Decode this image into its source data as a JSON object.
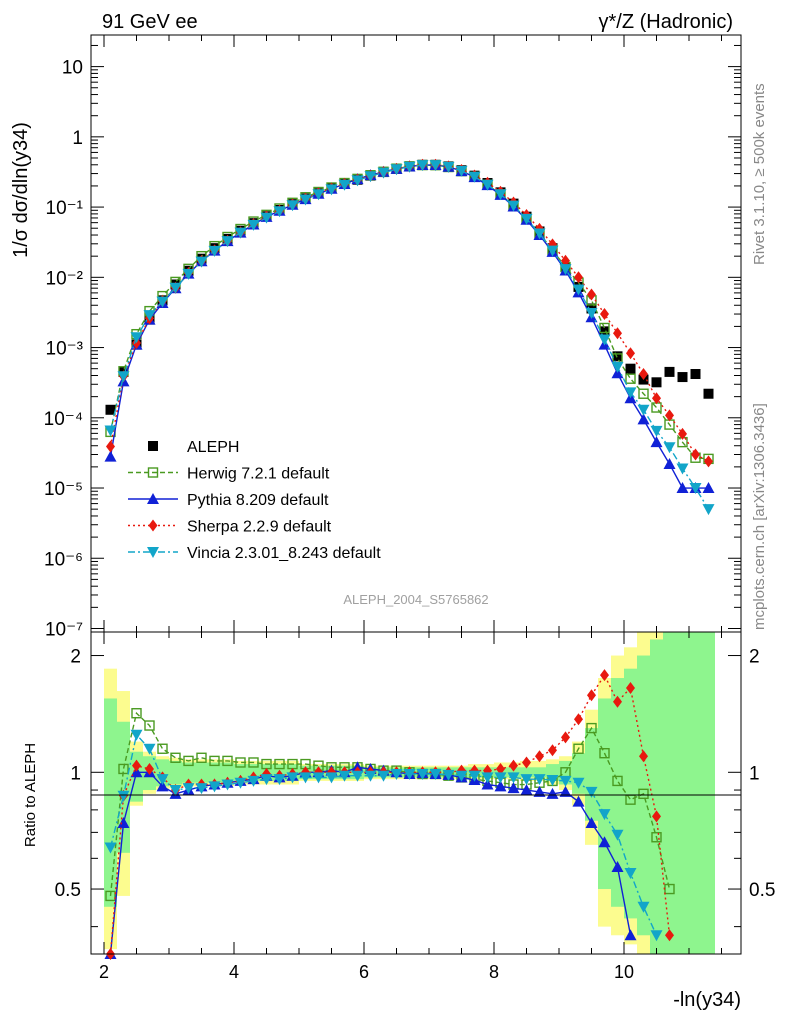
{
  "header": {
    "left_title": "91 GeV ee",
    "right_title": "γ*/Z (Hadronic)"
  },
  "side_labels": {
    "rivet": "Rivet 3.1.10, ≥ 500k events",
    "mcplots": "mcplots.cern.ch [arXiv:1306.3436]"
  },
  "watermark": "ALEPH_2004_S5765862",
  "axes": {
    "ylabel_top": "1/σ  dσ/dln(y34)",
    "ylabel_bottom": "Ratio to ALEPH",
    "xlabel": "-ln(y34)",
    "xlim": [
      1.8,
      11.8
    ],
    "ylim_top_log10": [
      -7.05,
      1.45
    ],
    "ylim_bottom": [
      0.34,
      2.3
    ],
    "x_ticks": [
      "2",
      "4",
      "6",
      "8",
      "10"
    ],
    "y_ticks_top": [
      "10",
      "1",
      "10⁻¹",
      "10⁻²",
      "10⁻³",
      "10⁻⁴",
      "10⁻⁵",
      "10⁻⁶",
      "10⁻⁷"
    ],
    "y_ticks_bottom": [
      "0.5",
      "1",
      "2"
    ]
  },
  "legend": [
    {
      "label": "ALEPH",
      "color": "#000000",
      "marker": "square"
    },
    {
      "label": "Herwig 7.2.1 default",
      "color": "#4a9a21",
      "marker": "open-square"
    },
    {
      "label": "Pythia 8.209 default",
      "color": "#1021d6",
      "marker": "triangle-up"
    },
    {
      "label": "Sherpa 2.2.9 default",
      "color": "#e8190f",
      "marker": "diamond"
    },
    {
      "label": "Vincia 2.3.01_8.243 default",
      "color": "#12a5c9",
      "marker": "triangle-down"
    }
  ],
  "chart_data": {
    "type": "line",
    "title": "91 GeV ee  γ*/Z (Hadronic)",
    "xlabel": "-ln(y34)",
    "ylabel": "1/σ dσ/dln(y34)",
    "x": [
      2.1,
      2.3,
      2.5,
      2.7,
      2.9,
      3.1,
      3.3,
      3.5,
      3.7,
      3.9,
      4.1,
      4.3,
      4.5,
      4.7,
      4.9,
      5.1,
      5.3,
      5.5,
      5.7,
      5.9,
      6.1,
      6.3,
      6.5,
      6.7,
      6.9,
      7.1,
      7.3,
      7.5,
      7.7,
      7.9,
      8.1,
      8.3,
      8.5,
      8.7,
      8.9,
      9.1,
      9.3,
      9.5,
      9.7,
      9.9,
      10.1,
      10.3,
      10.5,
      10.7,
      10.9,
      11.1,
      11.3
    ],
    "series": [
      {
        "name": "ALEPH",
        "values": [
          0.00013,
          0.00045,
          0.0011,
          0.0025,
          0.0047,
          0.0079,
          0.0124,
          0.0184,
          0.026,
          0.0352,
          0.046,
          0.059,
          0.074,
          0.091,
          0.11,
          0.132,
          0.157,
          0.184,
          0.213,
          0.245,
          0.28,
          0.315,
          0.35,
          0.38,
          0.4,
          0.4,
          0.38,
          0.335,
          0.28,
          0.22,
          0.162,
          0.112,
          0.073,
          0.045,
          0.026,
          0.014,
          0.0073,
          0.0036,
          0.0017,
          0.00075,
          0.0005,
          0.00035,
          0.00032,
          0.00045,
          0.00038,
          0.00042,
          0.00022
        ]
      },
      {
        "name": "Herwig 7.2.1 default",
        "values": [
          6.3e-05,
          0.00046,
          0.00155,
          0.0033,
          0.0054,
          0.0086,
          0.0132,
          0.02,
          0.0278,
          0.0375,
          0.0487,
          0.0622,
          0.0775,
          0.0955,
          0.115,
          0.138,
          0.164,
          0.19,
          0.22,
          0.252,
          0.284,
          0.318,
          0.352,
          0.38,
          0.396,
          0.395,
          0.372,
          0.325,
          0.27,
          0.208,
          0.152,
          0.104,
          0.068,
          0.042,
          0.0245,
          0.014,
          0.0084,
          0.0047,
          0.0019,
          0.0007,
          0.00036,
          0.00022,
          0.00014,
          8e-05,
          4.5e-05,
          2.7e-05,
          2.6e-05
        ]
      },
      {
        "name": "Pythia 8.209 default",
        "values": [
          2.8e-05,
          0.00033,
          0.0011,
          0.0025,
          0.0043,
          0.007,
          0.0113,
          0.0169,
          0.024,
          0.0328,
          0.0433,
          0.0565,
          0.0725,
          0.0885,
          0.108,
          0.13,
          0.155,
          0.182,
          0.213,
          0.25,
          0.285,
          0.318,
          0.35,
          0.378,
          0.398,
          0.397,
          0.375,
          0.325,
          0.267,
          0.205,
          0.149,
          0.102,
          0.066,
          0.04,
          0.023,
          0.0125,
          0.0061,
          0.0027,
          0.0011,
          0.00043,
          0.00019,
          9.5e-05,
          4.5e-05,
          2.2e-05,
          1e-05,
          1e-05,
          1e-05
        ]
      },
      {
        "name": "Sherpa 2.2.9 default",
        "values": [
          3.9e-05,
          0.00039,
          0.00116,
          0.0026,
          0.0046,
          0.0071,
          0.0115,
          0.0171,
          0.0242,
          0.0332,
          0.0438,
          0.0571,
          0.0733,
          0.0892,
          0.109,
          0.132,
          0.157,
          0.184,
          0.214,
          0.246,
          0.279,
          0.315,
          0.35,
          0.38,
          0.4,
          0.4,
          0.38,
          0.337,
          0.282,
          0.222,
          0.165,
          0.116,
          0.077,
          0.049,
          0.0295,
          0.0172,
          0.01,
          0.0057,
          0.003,
          0.0016,
          0.00083,
          0.00042,
          0.00019,
          0.000108,
          5.9e-05,
          3e-05,
          2.4e-05
        ]
      },
      {
        "name": "Vincia 2.3.01_8.243 default",
        "values": [
          6.6e-05,
          0.00039,
          0.0014,
          0.0029,
          0.0045,
          0.0071,
          0.0112,
          0.0167,
          0.0238,
          0.0327,
          0.0432,
          0.0558,
          0.0708,
          0.0873,
          0.106,
          0.128,
          0.152,
          0.179,
          0.208,
          0.24,
          0.275,
          0.31,
          0.345,
          0.375,
          0.396,
          0.396,
          0.374,
          0.327,
          0.27,
          0.208,
          0.152,
          0.105,
          0.068,
          0.042,
          0.024,
          0.0131,
          0.0067,
          0.0031,
          0.0013,
          0.00053,
          0.00023,
          0.00013,
          6.5e-05,
          3.8e-05,
          1.9e-05,
          1e-05,
          5e-06
        ]
      }
    ],
    "ratio_to_aleph": {
      "Herwig 7.2.1 default": [
        0.48,
        1.02,
        1.42,
        1.32,
        1.15,
        1.09,
        1.07,
        1.09,
        1.07,
        1.07,
        1.06,
        1.06,
        1.05,
        1.05,
        1.05,
        1.05,
        1.04,
        1.03,
        1.03,
        1.03,
        1.02,
        1.01,
        1.01,
        1.0,
        0.99,
        0.99,
        0.98,
        0.97,
        0.96,
        0.95,
        0.94,
        0.93,
        0.93,
        0.94,
        0.95,
        1.0,
        1.15,
        1.3,
        1.12,
        0.95,
        0.85,
        0.88,
        0.68,
        0.5,
        null,
        null,
        null
      ],
      "Pythia 8.209 default": [
        0.22,
        0.74,
        1.0,
        1.0,
        0.92,
        0.88,
        0.9,
        0.92,
        0.93,
        0.94,
        0.95,
        0.96,
        0.98,
        0.97,
        0.98,
        1.0,
        1.0,
        1.01,
        1.0,
        1.03,
        1.02,
        1.01,
        1.0,
        0.99,
        0.995,
        0.99,
        0.985,
        0.97,
        0.955,
        0.93,
        0.92,
        0.91,
        0.9,
        0.89,
        0.88,
        0.89,
        0.84,
        0.74,
        0.66,
        0.57,
        0.38,
        null,
        null,
        null,
        null,
        null,
        null
      ],
      "Sherpa 2.2.9 default": [
        0.3,
        0.87,
        1.04,
        1.02,
        0.97,
        0.9,
        0.93,
        0.93,
        0.93,
        0.94,
        0.95,
        0.97,
        0.99,
        0.98,
        0.99,
        1.0,
        1.0,
        1.0,
        1.0,
        1.0,
        1.0,
        1.0,
        1.0,
        1.0,
        1.0,
        1.0,
        1.0,
        1.01,
        1.01,
        1.01,
        1.02,
        1.04,
        1.06,
        1.1,
        1.14,
        1.23,
        1.37,
        1.58,
        1.78,
        1.52,
        1.65,
        1.1,
        0.77,
        0.38,
        null,
        null,
        null
      ],
      "Vincia 2.3.01_8.243 default": [
        0.64,
        0.87,
        1.25,
        1.15,
        0.96,
        0.9,
        0.91,
        0.91,
        0.92,
        0.93,
        0.94,
        0.95,
        0.96,
        0.96,
        0.97,
        0.97,
        0.97,
        0.97,
        0.98,
        0.98,
        0.98,
        0.98,
        0.99,
        0.99,
        0.99,
        0.99,
        0.985,
        0.98,
        0.98,
        0.97,
        0.97,
        0.97,
        0.96,
        0.96,
        0.955,
        0.95,
        0.94,
        0.89,
        0.78,
        0.69,
        0.55,
        0.45,
        0.38,
        null,
        null,
        null,
        null
      ]
    },
    "aleph_uncertainty_bands": {
      "x_edges": [
        2.0,
        2.2,
        2.4,
        2.6,
        2.8,
        3.0,
        3.2,
        4.0,
        5.0,
        6.0,
        6.8,
        7.2,
        7.6,
        8.0,
        8.4,
        8.8,
        9.0,
        9.2,
        9.4,
        9.6,
        9.8,
        10.0,
        10.2,
        10.4,
        10.6,
        10.8,
        11.0,
        11.2,
        11.4
      ],
      "stat_lo": [
        0.45,
        0.62,
        0.84,
        0.9,
        0.92,
        0.93,
        0.94,
        0.95,
        0.96,
        0.97,
        0.97,
        0.97,
        0.97,
        0.97,
        0.97,
        0.95,
        0.93,
        0.88,
        0.75,
        0.5,
        0.45,
        0.42,
        0.38,
        0.34,
        0.34,
        0.34,
        0.34,
        0.34
      ],
      "stat_hi": [
        1.55,
        1.35,
        1.13,
        1.1,
        1.08,
        1.07,
        1.06,
        1.05,
        1.04,
        1.03,
        1.03,
        1.03,
        1.03,
        1.03,
        1.03,
        1.05,
        1.07,
        1.12,
        1.3,
        1.55,
        1.75,
        1.85,
        2.0,
        2.2,
        2.3,
        2.3,
        2.3,
        2.3
      ],
      "syst_lo": [
        0.35,
        0.48,
        0.82,
        0.88,
        0.9,
        0.91,
        0.92,
        0.93,
        0.95,
        0.96,
        0.96,
        0.96,
        0.96,
        0.96,
        0.95,
        0.93,
        0.9,
        0.82,
        0.65,
        0.4,
        0.38,
        0.36,
        0.34,
        0.34,
        0.34,
        0.34,
        0.34,
        0.34
      ],
      "syst_hi": [
        1.85,
        1.62,
        1.2,
        1.13,
        1.1,
        1.09,
        1.08,
        1.07,
        1.05,
        1.04,
        1.04,
        1.04,
        1.05,
        1.06,
        1.07,
        1.08,
        1.1,
        1.2,
        1.45,
        1.75,
        2.0,
        2.1,
        2.3,
        2.3,
        2.3,
        2.3,
        2.3,
        2.3
      ]
    }
  }
}
